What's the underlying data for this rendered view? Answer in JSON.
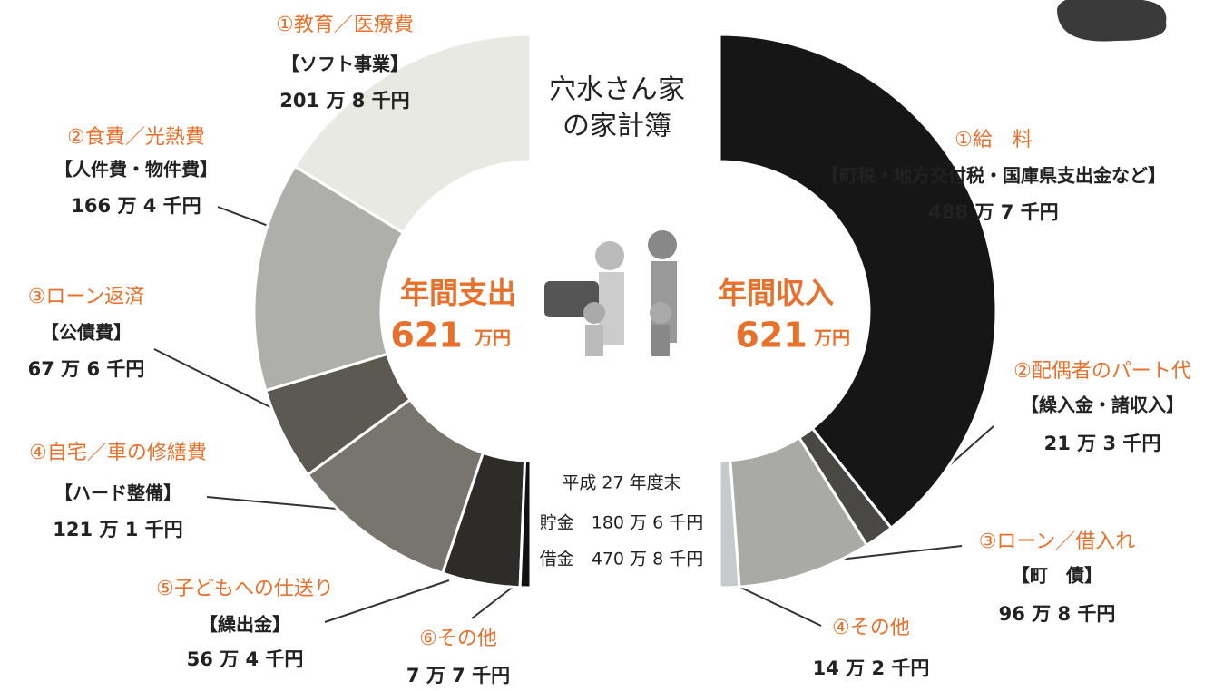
{
  "title_lines": [
    "穴水さん家",
    "の家計簿"
  ],
  "chart_data": [
    {
      "type": "half-donut",
      "side": "left",
      "label": "年間支出",
      "total": 621,
      "total_unit": "万円",
      "categories": [
        "①教育／医療費",
        "②食費／光熱費",
        "③ローン返済",
        "④自宅／車の修繕費",
        "⑤子どもへの仕送り",
        "⑥その他"
      ],
      "subcategories": [
        "【ソフト事業】",
        "【人件費・物件費】",
        "【公債費】",
        "【ハード整備】",
        "【繰出金】",
        null
      ],
      "values": [
        201.8,
        166.4,
        67.6,
        121.1,
        56.4,
        7.7
      ],
      "value_labels": [
        "201 万 8 千円",
        "166 万 4 千円",
        "67 万 6 千円",
        "121 万 1 千円",
        "56 万 4 千円",
        "7 万 7 千円"
      ],
      "colors": [
        "#e9e9e3",
        "#aeaeaa",
        "#5b5952",
        "#77756d",
        "#2e2c29",
        "#111111"
      ]
    },
    {
      "type": "half-donut",
      "side": "right",
      "label": "年間収入",
      "total": 621,
      "total_unit": "万円",
      "categories": [
        "①給　料",
        "②配偶者のパート代",
        "③ローン／借入れ",
        "④その他"
      ],
      "subcategories": [
        "【町税・地方交付税・国庫県支出金など】",
        "【繰入金・諸収入】",
        "【町　債】",
        null
      ],
      "values": [
        488.7,
        21.3,
        96.8,
        14.2
      ],
      "value_labels": [
        "488 万 7 千円",
        "21 万 3 千円",
        "96 万 8 千円",
        "14 万 2 千円"
      ],
      "colors": [
        "#161616",
        "#4a4844",
        "#a9a9a5",
        "#c6cacd"
      ]
    }
  ],
  "note": {
    "title": "平成 27 年度末",
    "rows": [
      "貯金　180 万 6 千円",
      "借金　470 万 8 千円"
    ]
  }
}
